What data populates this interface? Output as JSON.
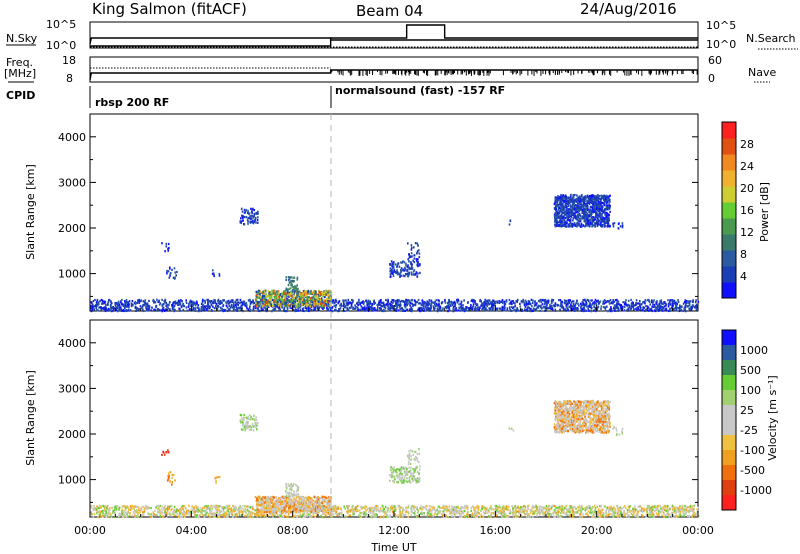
{
  "header": {
    "station": "King Salmon (fitACF)",
    "beam": "Beam 04",
    "date": "24/Aug/2016"
  },
  "top_panels": {
    "nsky_label": "N.Sky",
    "nsky_ticks": [
      "10^5",
      "10^0"
    ],
    "nsearch_label": "N.Search",
    "nsearch_ticks": [
      "10^5",
      "10^0"
    ],
    "freq_label": "Freq.",
    "freq_unit": "[MHz]",
    "freq_ticks": [
      "18",
      "8"
    ],
    "nave_label": "Nave",
    "nave_ticks": [
      "60",
      "0"
    ],
    "cpid_label": "CPID",
    "cpid_segments": [
      {
        "label": "rbsp 200 RF",
        "start_hour": 0
      },
      {
        "label": "normalsound (fast) -157 RF",
        "start_hour": 9.5
      }
    ]
  },
  "chart_data": [
    {
      "type": "heatmap",
      "name": "power",
      "ylabel": "Slant Range [km]",
      "xlabel": "",
      "xlim": [
        0,
        24
      ],
      "ylim": [
        180,
        4500
      ],
      "yticks": [
        1000,
        2000,
        3000,
        4000
      ],
      "colorbar": {
        "label": "Power [dB]",
        "ticks": [
          "4",
          "8",
          "12",
          "16",
          "20",
          "24",
          "28"
        ],
        "colors": [
          "#1010ff",
          "#1a3fb5",
          "#2a5aa0",
          "#3a7a6a",
          "#4a9a50",
          "#66cc33",
          "#cccc33",
          "#f0b030",
          "#f08a20",
          "#e05010",
          "#ff2020"
        ]
      },
      "scatter_regions": [
        {
          "t0": 0.0,
          "t1": 24.0,
          "r0": 200,
          "r1": 450,
          "density": "high",
          "dominant": "blue"
        },
        {
          "t0": 6.5,
          "t1": 9.5,
          "r0": 300,
          "r1": 650,
          "density": "high",
          "dominant": "green-yellow"
        },
        {
          "t0": 7.7,
          "t1": 8.2,
          "r0": 650,
          "r1": 950,
          "density": "medium",
          "dominant": "green"
        },
        {
          "t0": 5.9,
          "t1": 6.6,
          "r0": 2100,
          "r1": 2450,
          "density": "medium",
          "dominant": "blue"
        },
        {
          "t0": 2.8,
          "t1": 3.1,
          "r0": 1500,
          "r1": 1700,
          "density": "low",
          "dominant": "blue"
        },
        {
          "t0": 3.0,
          "t1": 3.4,
          "r0": 900,
          "r1": 1200,
          "density": "low",
          "dominant": "blue"
        },
        {
          "t0": 4.8,
          "t1": 5.1,
          "r0": 950,
          "r1": 1100,
          "density": "low",
          "dominant": "blue"
        },
        {
          "t0": 11.8,
          "t1": 13.0,
          "r0": 950,
          "r1": 1300,
          "density": "medium",
          "dominant": "blue"
        },
        {
          "t0": 12.5,
          "t1": 13.0,
          "r0": 1300,
          "r1": 1700,
          "density": "low",
          "dominant": "blue"
        },
        {
          "t0": 18.3,
          "t1": 20.5,
          "r0": 2050,
          "r1": 2750,
          "density": "high",
          "dominant": "blue"
        },
        {
          "t0": 20.6,
          "t1": 21.0,
          "r0": 2000,
          "r1": 2200,
          "density": "low",
          "dominant": "blue"
        },
        {
          "t0": 16.5,
          "t1": 16.7,
          "r0": 2100,
          "r1": 2200,
          "density": "low",
          "dominant": "blue"
        }
      ]
    },
    {
      "type": "heatmap",
      "name": "velocity",
      "ylabel": "Slant Range [km]",
      "xlabel": "Time UT",
      "xlim": [
        0,
        24
      ],
      "ylim": [
        180,
        4500
      ],
      "yticks": [
        1000,
        2000,
        3000,
        4000
      ],
      "xticks": [
        "00:00",
        "04:00",
        "08:00",
        "12:00",
        "16:00",
        "20:00",
        "00:00"
      ],
      "colorbar": {
        "label": "Velocity [m s⁻¹]",
        "ticks": [
          "1000",
          "500",
          "100",
          "25",
          "-25",
          "-100",
          "-500",
          "-1000"
        ],
        "colors": [
          "#1010ff",
          "#2a5aa0",
          "#3a8a55",
          "#66cc33",
          "#a0d070",
          "#c8c8c8",
          "#c8c8c8",
          "#f0c040",
          "#f0a020",
          "#f07010",
          "#e04010",
          "#ff2020"
        ]
      },
      "scatter_regions": [
        {
          "t0": 0.0,
          "t1": 24.0,
          "r0": 200,
          "r1": 450,
          "density": "high",
          "dominant": "yellow-gray"
        },
        {
          "t0": 6.5,
          "t1": 9.5,
          "r0": 300,
          "r1": 650,
          "density": "high",
          "dominant": "orange-gray"
        },
        {
          "t0": 7.7,
          "t1": 8.2,
          "r0": 650,
          "r1": 950,
          "density": "medium",
          "dominant": "gray"
        },
        {
          "t0": 5.9,
          "t1": 6.6,
          "r0": 2100,
          "r1": 2450,
          "density": "medium",
          "dominant": "gray-green"
        },
        {
          "t0": 2.8,
          "t1": 3.1,
          "r0": 1500,
          "r1": 1700,
          "density": "low",
          "dominant": "red"
        },
        {
          "t0": 3.0,
          "t1": 3.4,
          "r0": 900,
          "r1": 1200,
          "density": "low",
          "dominant": "orange"
        },
        {
          "t0": 4.8,
          "t1": 5.1,
          "r0": 950,
          "r1": 1100,
          "density": "low",
          "dominant": "orange"
        },
        {
          "t0": 11.8,
          "t1": 13.0,
          "r0": 950,
          "r1": 1300,
          "density": "medium",
          "dominant": "green-gray"
        },
        {
          "t0": 12.5,
          "t1": 13.0,
          "r0": 1300,
          "r1": 1700,
          "density": "low",
          "dominant": "gray"
        },
        {
          "t0": 18.3,
          "t1": 20.5,
          "r0": 2050,
          "r1": 2750,
          "density": "high",
          "dominant": "orange-gray"
        },
        {
          "t0": 20.6,
          "t1": 21.0,
          "r0": 2000,
          "r1": 2200,
          "density": "low",
          "dominant": "gray"
        },
        {
          "t0": 16.5,
          "t1": 16.7,
          "r0": 2100,
          "r1": 2200,
          "density": "low",
          "dominant": "gray"
        }
      ]
    }
  ],
  "colors": {
    "axis": "#000000",
    "dashed_marker": "#b4b4b4",
    "background": "#ffffff"
  }
}
